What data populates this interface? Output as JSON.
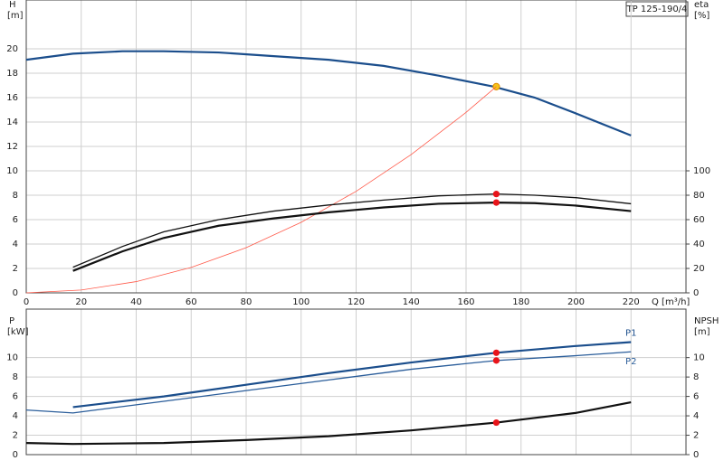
{
  "title": "TP 125-190/4",
  "chart_data": [
    {
      "type": "line",
      "x_label": "Q [m³/h]",
      "y_label": "H",
      "y_unit": "[m]",
      "y2_label": "eta",
      "y2_unit": "[%]",
      "xlim": [
        0,
        240
      ],
      "xticks": [
        0,
        20,
        40,
        60,
        80,
        100,
        120,
        140,
        160,
        180,
        200,
        220
      ],
      "ylim": [
        0,
        24
      ],
      "yticks": [
        0,
        2,
        4,
        6,
        8,
        10,
        12,
        14,
        16,
        18,
        20
      ],
      "y2lim": [
        0,
        240
      ],
      "y2ticks": [
        0,
        20,
        40,
        60,
        80,
        100
      ],
      "grid": true,
      "series": [
        {
          "color": "#1b4e8c",
          "style": "thick",
          "x": [
            0,
            17,
            35,
            50,
            70,
            90,
            110,
            130,
            150,
            170,
            185,
            200,
            220
          ],
          "values": [
            19.1,
            19.6,
            19.8,
            19.8,
            19.7,
            19.4,
            19.1,
            18.6,
            17.8,
            16.9,
            16.0,
            14.7,
            12.9
          ],
          "marker": {
            "x": 171,
            "y": 16.9,
            "color": "#f5c518"
          }
        },
        {
          "color": "#ff5a4a",
          "style": "hair",
          "x": [
            0,
            20,
            40,
            60,
            80,
            100,
            120,
            140,
            160,
            171
          ],
          "values": [
            0,
            0.23,
            0.92,
            2.08,
            3.7,
            5.78,
            8.32,
            11.33,
            14.79,
            16.9
          ]
        },
        {
          "color": "#111111",
          "style": "thin",
          "axis": "y2",
          "x": [
            17,
            35,
            50,
            70,
            90,
            110,
            130,
            150,
            171,
            185,
            200,
            220
          ],
          "values": [
            21,
            38,
            50,
            60,
            67,
            72,
            76,
            79.5,
            81,
            80,
            78,
            73
          ],
          "marker": {
            "x": 171,
            "y": 81,
            "color": "#e8141a"
          }
        },
        {
          "color": "#111111",
          "style": "thick",
          "axis": "y2",
          "x": [
            17,
            35,
            50,
            70,
            90,
            110,
            130,
            150,
            171,
            185,
            200,
            220
          ],
          "values": [
            18,
            34,
            45,
            55,
            61,
            66,
            70,
            73,
            74,
            73.5,
            71.5,
            67
          ],
          "marker": {
            "x": 171,
            "y": 74,
            "color": "#e8141a"
          }
        }
      ]
    },
    {
      "type": "line",
      "y_label": "P",
      "y_unit": "[kW]",
      "y2_label": "NPSH",
      "y2_unit": "[m]",
      "xlim": [
        0,
        240
      ],
      "xticks": [
        0,
        20,
        40,
        60,
        80,
        100,
        120,
        140,
        160,
        180,
        200,
        220
      ],
      "ylim": [
        0,
        15
      ],
      "yticks": [
        0,
        2,
        4,
        6,
        8,
        10
      ],
      "y2lim": [
        0,
        15
      ],
      "y2ticks": [
        0,
        2,
        4,
        6,
        8,
        10
      ],
      "grid": true,
      "series": [
        {
          "name": "P1",
          "color": "#1b4e8c",
          "style": "thick",
          "x": [
            17,
            50,
            80,
            110,
            140,
            171,
            200,
            220
          ],
          "values": [
            4.9,
            6.0,
            7.2,
            8.4,
            9.5,
            10.5,
            11.2,
            11.6
          ],
          "marker": {
            "x": 171,
            "y": 10.5,
            "color": "#e8141a"
          }
        },
        {
          "name": "P2",
          "color": "#2a5d9a",
          "style": "thin",
          "x": [
            0,
            17,
            50,
            80,
            110,
            140,
            171,
            200,
            220
          ],
          "values": [
            4.6,
            4.3,
            5.5,
            6.6,
            7.7,
            8.8,
            9.7,
            10.2,
            10.6
          ],
          "marker": {
            "x": 171,
            "y": 9.7,
            "color": "#e8141a"
          }
        },
        {
          "color": "#111111",
          "style": "thick",
          "axis": "y2",
          "x": [
            0,
            17,
            50,
            80,
            110,
            140,
            171,
            200,
            220
          ],
          "values": [
            1.2,
            1.1,
            1.2,
            1.5,
            1.9,
            2.5,
            3.3,
            4.3,
            5.4
          ],
          "marker": {
            "x": 171,
            "y": 3.3,
            "color": "#e8141a"
          }
        }
      ]
    }
  ]
}
